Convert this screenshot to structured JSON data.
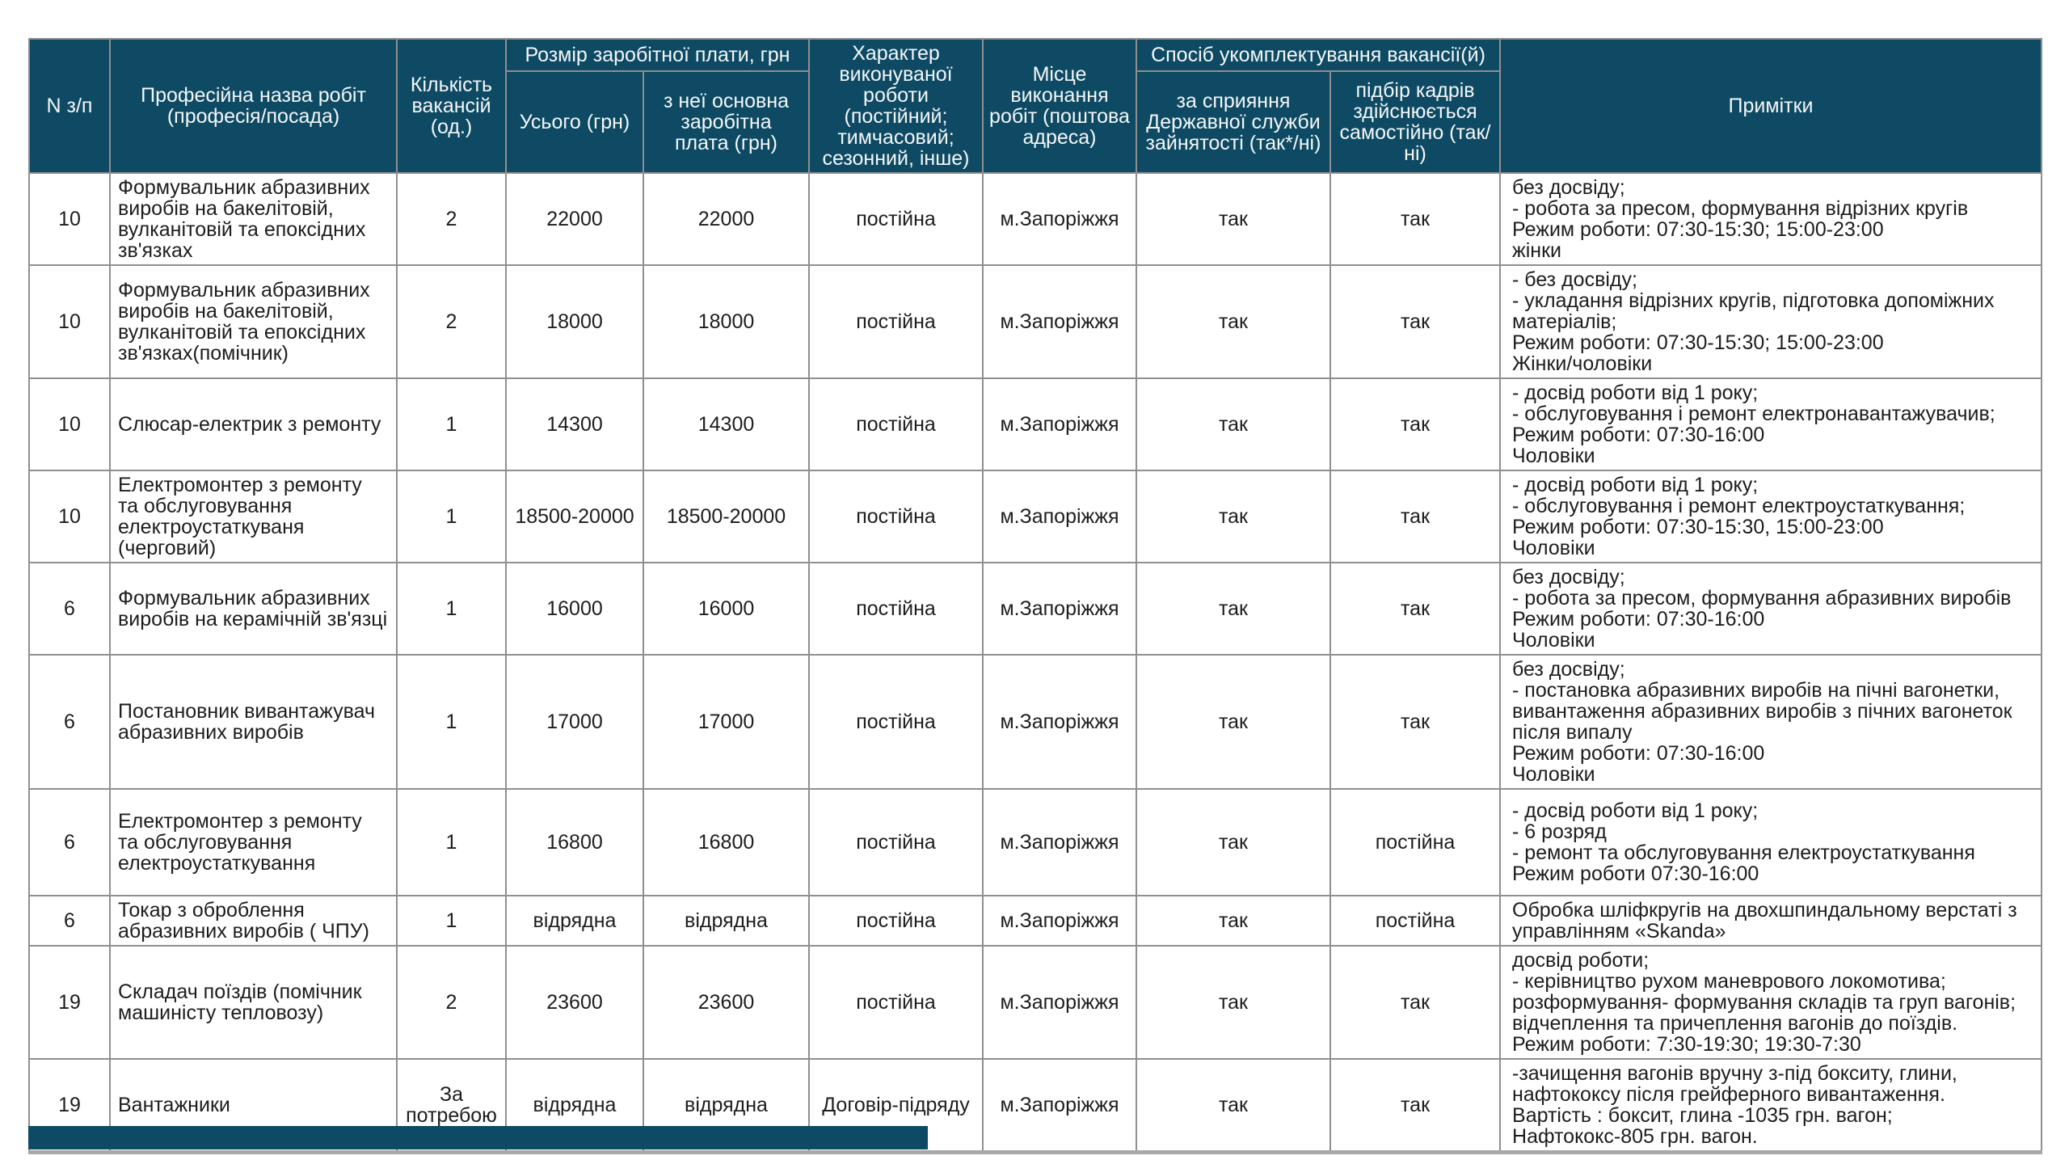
{
  "colors": {
    "header_bg": "#0e4a63",
    "header_text": "#f4f7f8",
    "body_text": "#1d1d1d",
    "border": "#8f8f8f"
  },
  "table": {
    "header": {
      "col_num": "N з/п",
      "col_profession": "Професійна назва робіт\n(професія/посада)",
      "col_vacancies": "Кількість\nвакансій\n(од.)",
      "group_salary": "Розмір заробітної плати, грн",
      "col_salary_total": "Усього (грн)",
      "col_salary_base": "з неї основна\nзаробітна\nплата (грн)",
      "col_nature": "Характер\nвиконуваної\nроботи (постійний;\nтимчасовий;\nсезонний, інше)",
      "col_place": "Місце\nвиконання\nробіт (поштова\nадреса)",
      "group_staffing": "Спосіб укомплектування вакансії(й)",
      "col_via_employment_service": "за сприяння\nДержавної служби\nзайнятості (так*/ні)",
      "col_self_recruitment": "підбір кадрів\nздійснюється\nсамостійно (так/ні)",
      "col_notes": "Примітки"
    },
    "rows": [
      {
        "num": "10",
        "profession": "Формувальник абразивних\nвиробів на бакелітовій,\nвулканітовій та епоксідних\nзв'язках",
        "vacancies": "2",
        "salary_total": "22000",
        "salary_base": "22000",
        "nature": "постійна",
        "place": "м.Запоріжжя",
        "via_service": "так",
        "self_recruit": "так",
        "notes": "без досвіду;\n- робота за пресом, формування відрізних кругів\nРежим роботи: 07:30-15:30; 15:00-23:00\nжінки"
      },
      {
        "num": "10",
        "profession": "Формувальник абразивних\nвиробів на бакелітовій,\nвулканітовій та епоксідних\nзв'язках(помічник)",
        "vacancies": "2",
        "salary_total": "18000",
        "salary_base": "18000",
        "nature": "постійна",
        "place": "м.Запоріжжя",
        "via_service": "так",
        "self_recruit": "так",
        "notes": "- без досвіду;\n- укладання відрізних кругів, підготовка допоміжних\nматеріалів;\nРежим роботи: 07:30-15:30; 15:00-23:00\nЖінки/чоловіки"
      },
      {
        "num": "10",
        "profession": "Слюсар-електрик  з ремонту",
        "vacancies": "1",
        "salary_total": "14300",
        "salary_base": "14300",
        "nature": "постійна",
        "place": "м.Запоріжжя",
        "via_service": "так",
        "self_recruit": "так",
        "notes": "- досвід роботи від 1 року;\n- обслуговування  і ремонт електронавантажувачив;\nРежим роботи: 07:30-16:00\nЧоловіки"
      },
      {
        "num": "10",
        "profession": "Електромонтер з ремонту\nта обслуговування\nелектроустаткуваня\n(черговий)",
        "vacancies": "1",
        "salary_total": "18500-20000",
        "salary_base": "18500-20000",
        "nature": "постійна",
        "place": "м.Запоріжжя",
        "via_service": "так",
        "self_recruit": "так",
        "notes": "- досвід роботи від 1 року;\n- обслуговування  і ремонт електроустаткування;\nРежим роботи: 07:30-15:30, 15:00-23:00\nЧоловіки"
      },
      {
        "num": "6",
        "profession": "Формувальник абразивних\nвиробів на керамічній зв'язці",
        "vacancies": "1",
        "salary_total": "16000",
        "salary_base": "16000",
        "nature": "постійна",
        "place": "м.Запоріжжя",
        "via_service": "так",
        "self_recruit": "так",
        "notes": "без досвіду;\n- робота за пресом, формування абразивних виробів\nРежим роботи: 07:30-16:00\nЧоловіки"
      },
      {
        "num": "6",
        "profession": "Постановник вивантажувач\nабразивних виробів",
        "vacancies": "1",
        "salary_total": "17000",
        "salary_base": "17000",
        "nature": "постійна",
        "place": "м.Запоріжжя",
        "via_service": "так",
        "self_recruit": "так",
        "notes": "без досвіду;\n- постановка абразивних виробів на пічні вагонетки,\nвивантаження абразивних виробів з пічних вагонеток\nпісля випалу\nРежим роботи: 07:30-16:00\nЧоловіки"
      },
      {
        "num": "6",
        "profession": "Електромонтер з ремонту\nта обслуговування\nелектроустаткування",
        "vacancies": "1",
        "salary_total": "16800",
        "salary_base": "16800",
        "nature": "постійна",
        "place": "м.Запоріжжя",
        "via_service": "так",
        "self_recruit": "постійна",
        "notes": "- досвід роботи від 1 року;\n- 6 розряд\n- ремонт та обслуговування електроустаткування\nРежим  роботи 07:30-16:00"
      },
      {
        "num": "6",
        "profession": "Токар з оброблення\nабразивних виробів ( ЧПУ)",
        "vacancies": "1",
        "salary_total": "відрядна",
        "salary_base": "відрядна",
        "nature": "постійна",
        "place": "м.Запоріжжя",
        "via_service": "так",
        "self_recruit": "постійна",
        "notes": "Обробка шліфкругів на двохшпиндальному  верстаті з\nуправлінням «Skanda»"
      },
      {
        "num": "19",
        "profession": "Складач поїздів (помічник\nмашиністу тепловозу)",
        "vacancies": "2",
        "salary_total": "23600",
        "salary_base": "23600",
        "nature": "постійна",
        "place": "м.Запоріжжя",
        "via_service": "так",
        "self_recruit": "так",
        "notes": "досвід роботи;\n- керівництво рухом маневрового локомотива;\nрозформування- формування складів та груп вагонів;\nвідчеплення та причеплення вагонів до поїздів.\nРежим  роботи: 7:30-19:30; 19:30-7:30"
      },
      {
        "num": "19",
        "profession": "Вантажники",
        "vacancies": "За\nпотребою",
        "salary_total": "відрядна",
        "salary_base": "відрядна",
        "nature": "Договір-підряду",
        "place": "м.Запоріжжя",
        "via_service": "так",
        "self_recruit": "так",
        "notes": "-зачищення вагонів вручну з-під бокситу, глини,\nнафтококсу після грейферного вивантаження.\nВартість : боксит, глина -1035 грн. вагон;\nНафтококс-805 грн. вагон."
      }
    ]
  }
}
